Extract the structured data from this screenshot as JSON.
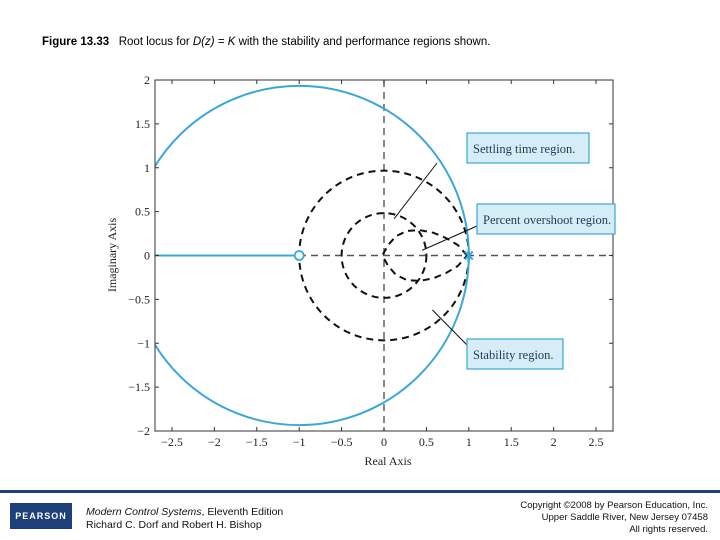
{
  "caption": {
    "figure_label": "Figure 13.33",
    "pre_text": "Root locus for ",
    "math": "D(z) = K",
    "post_text": " with the stability and performance regions shown."
  },
  "chart_data": {
    "type": "line",
    "title": "",
    "xlabel": "Real Axis",
    "ylabel": "Imaginary Axis",
    "xlim": [
      -2.7,
      2.7
    ],
    "ylim": [
      -2,
      2
    ],
    "xticks": [
      -2.5,
      -2,
      -1.5,
      -1,
      -0.5,
      0,
      0.5,
      1,
      1.5,
      2,
      2.5
    ],
    "xtick_labels": [
      "−2.5",
      "−2",
      "−1.5",
      "−1",
      "−0.5",
      "0",
      "0.5",
      "1",
      "1.5",
      "2",
      "2.5"
    ],
    "yticks": [
      2,
      1.5,
      1,
      0.5,
      0,
      -0.5,
      -1,
      -1.5,
      -2
    ],
    "ytick_labels": [
      "2",
      "1.5",
      "1",
      "0.5",
      "0",
      "−0.5",
      "−1",
      "−1.5",
      "−2"
    ],
    "root_locus": {
      "color": "#3aa7d8",
      "circle": {
        "center": [
          -1,
          0
        ],
        "radius": 2
      },
      "real_axis_segment": [
        -2.7,
        -1
      ],
      "zero": [
        -1,
        0
      ],
      "pole": [
        1,
        0
      ]
    },
    "regions": {
      "stability_unit_circle": {
        "center": [
          0,
          0
        ],
        "radius": 1
      },
      "settling_time_circle": {
        "center": [
          0,
          0
        ],
        "radius": 0.5
      },
      "percent_overshoot_contour": [
        [
          0.98,
          0
        ],
        [
          0.87,
          0.12
        ],
        [
          0.73,
          0.2
        ],
        [
          0.58,
          0.26
        ],
        [
          0.42,
          0.29
        ],
        [
          0.27,
          0.28
        ],
        [
          0.14,
          0.22
        ],
        [
          0.05,
          0.12
        ],
        [
          -0.02,
          0
        ]
      ]
    },
    "annotations": [
      {
        "text": "Settling time region.",
        "arrow_to": [
          0.12,
          0.42
        ]
      },
      {
        "text": "Percent overshoot region.",
        "arrow_to": [
          0.45,
          0.06
        ]
      },
      {
        "text": "Stability region.",
        "arrow_to": [
          0.57,
          -0.62
        ]
      }
    ],
    "grid": false,
    "legend": "none"
  },
  "footer": {
    "logo_text": "PEARSON",
    "book_title": "Modern Control Systems",
    "edition": ", Eleventh Edition",
    "authors": "Richard C. Dorf and Robert H. Bishop",
    "copyright_line1": "Copyright ©2008 by Pearson Education, Inc.",
    "copyright_line2": "Upper Saddle River, New Jersey 07458",
    "copyright_line3": "All rights reserved."
  }
}
